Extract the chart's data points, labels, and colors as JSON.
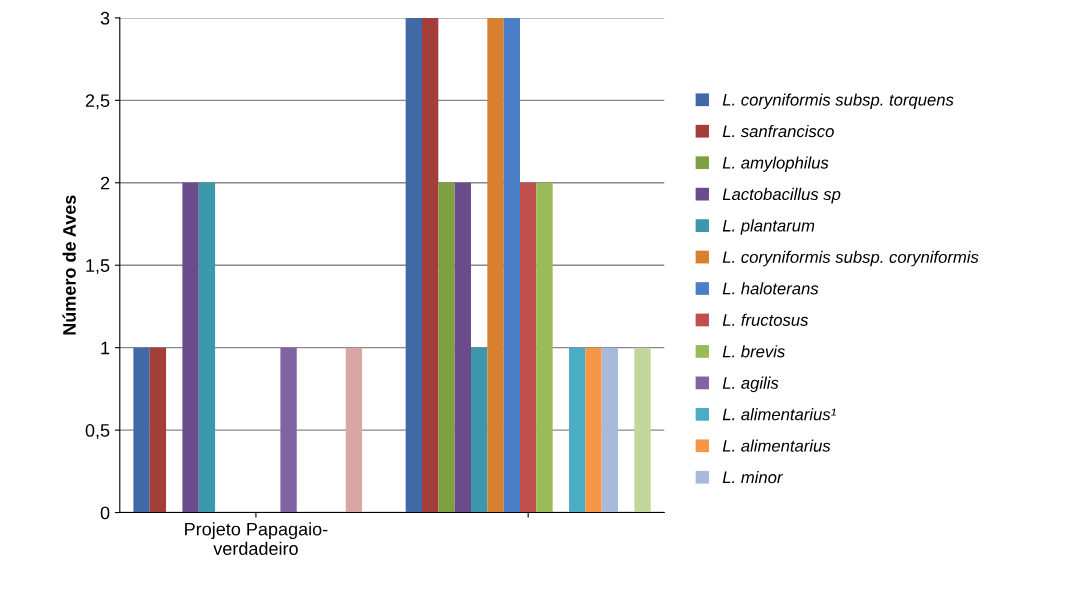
{
  "chart_data": {
    "type": "bar",
    "ylabel": "Número de Aves",
    "categories": [
      "Projeto Papagaio-\nverdadeiro",
      null
    ],
    "ylim": [
      0,
      3
    ],
    "yticks": [
      0,
      {
        "value": 0.5,
        "label": "0,5"
      },
      1,
      {
        "value": 1.5,
        "label": "1,5"
      },
      2,
      {
        "value": 2.5,
        "label": "2,5"
      },
      3
    ],
    "grid": "y",
    "legend": "right",
    "series": [
      {
        "name": "L. coryniformis subsp. torquens",
        "color": "#4169a6",
        "values": [
          1,
          3
        ]
      },
      {
        "name": "L. sanfrancisco",
        "color": "#a33e3b",
        "values": [
          1,
          3
        ]
      },
      {
        "name": "L. amylophilus",
        "color": "#7fa040",
        "values": [
          0,
          2
        ]
      },
      {
        "name": "Lactobacillus sp",
        "color": "#6a4c8c",
        "values": [
          2,
          2
        ]
      },
      {
        "name": "L. plantarum",
        "color": "#3c97ad",
        "values": [
          2,
          1
        ]
      },
      {
        "name": "L. coryniformis subsp. coryniformis",
        "color": "#d9802f",
        "values": [
          0,
          3
        ]
      },
      {
        "name": "L. haloterans",
        "color": "#4a7fc8",
        "values": [
          0,
          3
        ]
      },
      {
        "name": "L. fructosus",
        "color": "#c0504d",
        "values": [
          0,
          2
        ]
      },
      {
        "name": "L. brevis",
        "color": "#9bbb59",
        "values": [
          0,
          2
        ]
      },
      {
        "name": "L. agilis",
        "color": "#8064a2",
        "values": [
          1,
          0
        ]
      },
      {
        "name": "L. alimentarius¹",
        "color": "#4bacc6",
        "values": [
          0,
          1
        ]
      },
      {
        "name": "L. alimentarius",
        "color": "#f79646",
        "values": [
          0,
          1
        ]
      },
      {
        "name": "L. minor",
        "color": "#a8b9d9",
        "values": [
          0,
          1
        ]
      },
      {
        "color": "#d9a5a5",
        "values": [
          1,
          0
        ]
      },
      {
        "color": "#c3d69b",
        "values": [
          0,
          1
        ]
      }
    ]
  }
}
